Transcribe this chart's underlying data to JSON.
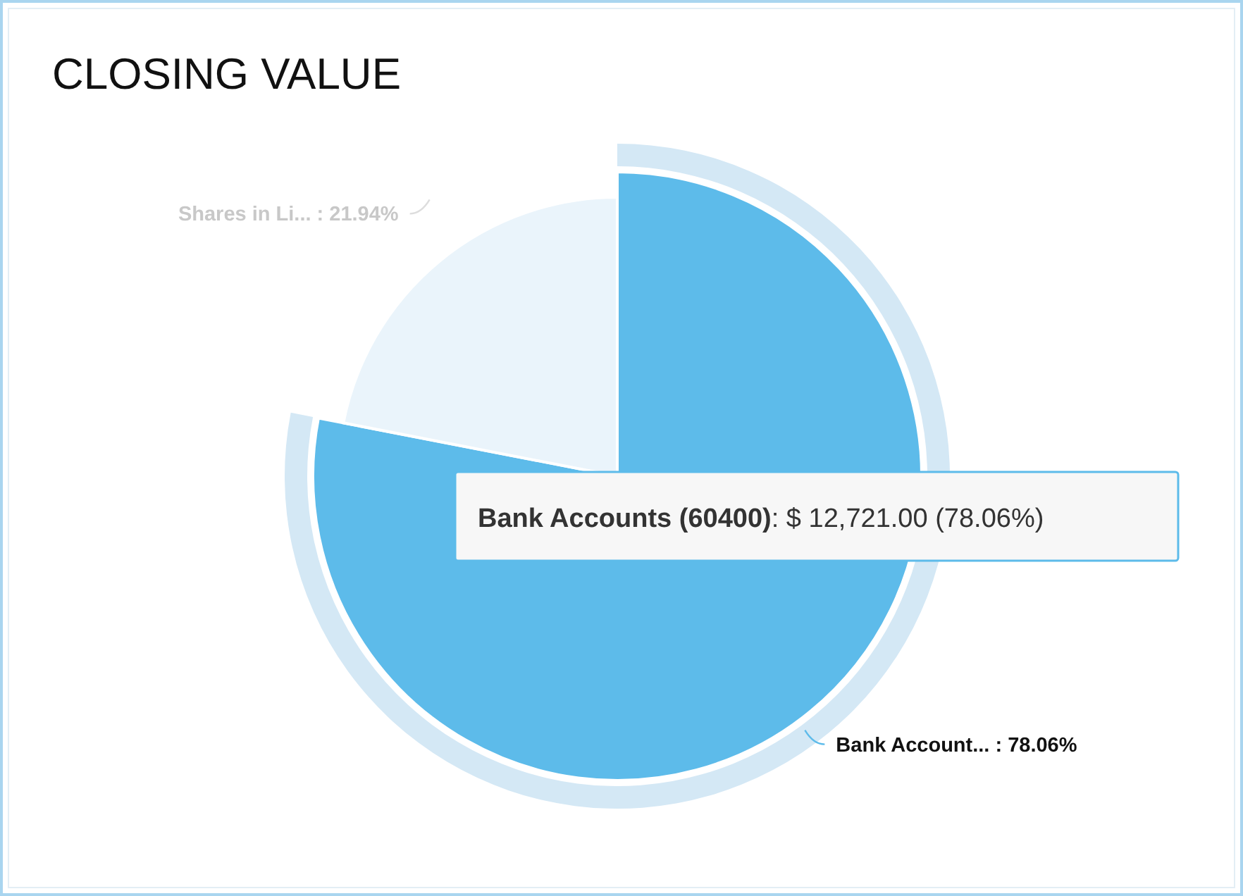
{
  "chart_data": {
    "type": "pie",
    "title": "CLOSING VALUE",
    "categories": [
      "Bank Account...",
      "Shares in Li..."
    ],
    "values": [
      78.06,
      21.94
    ],
    "value_labels": [
      "78.06%",
      "21.94%"
    ],
    "colors": [
      "#5dbbea",
      "#eaf4fb"
    ],
    "annotations": [
      "Bank Accounts (60400)",
      ": $ 12,721.00 (78.06%)"
    ]
  }
}
